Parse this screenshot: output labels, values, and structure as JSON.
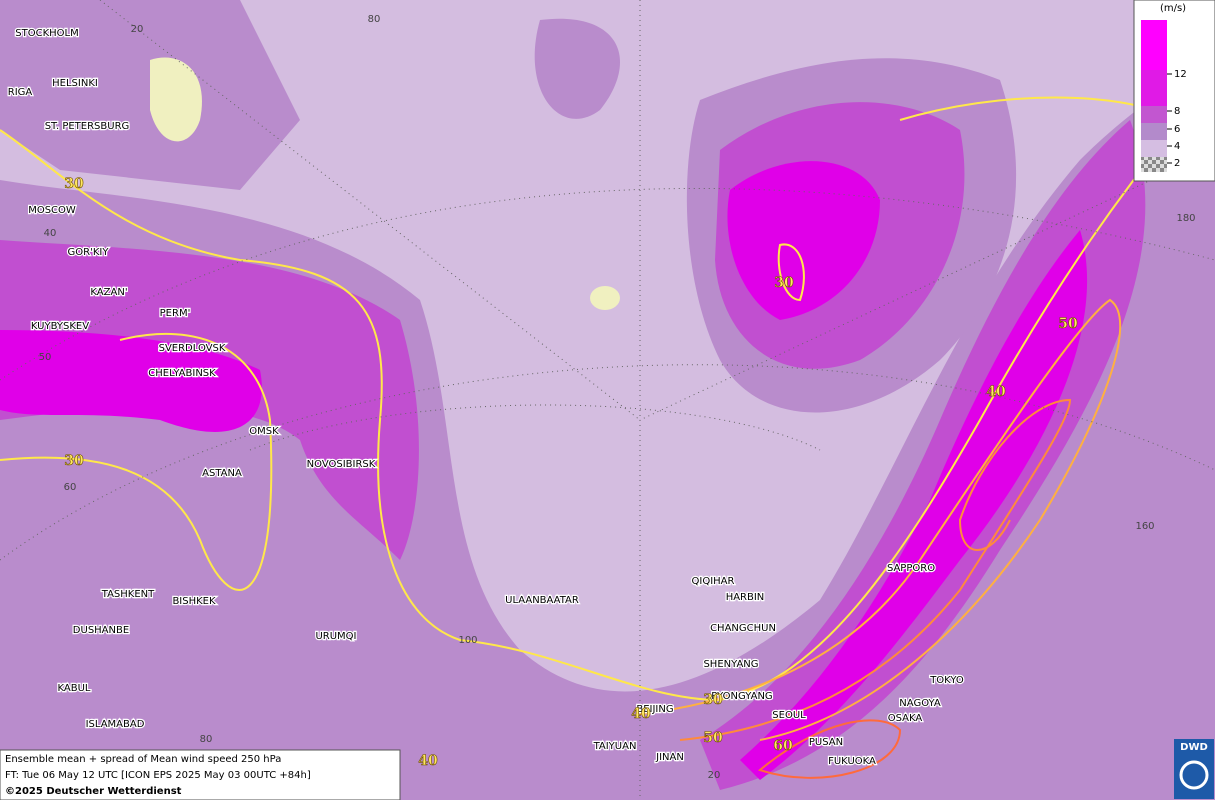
{
  "legend": {
    "unit": "(m/s)",
    "ticks": [
      2,
      4,
      6,
      8,
      12
    ]
  },
  "cities": [
    "STOCKHOLM",
    "HELSINKI",
    "RIGA",
    "ST. PETERSBURG",
    "MOSCOW",
    "GOR'KIY",
    "KAZAN'",
    "PERM'",
    "KUYBYSKEV",
    "SVERDLOVSK",
    "CHELYABINSK",
    "OMSK",
    "NOVOSIBIRSK",
    "ASTANA",
    "TASHKENT",
    "BISHKEK",
    "DUSHANBE",
    "URUMQI",
    "ULAANBAATAR",
    "QIQIHAR",
    "HARBIN",
    "CHANGCHUN",
    "SHENYANG",
    "PYONGYANG",
    "BEIJING",
    "SEOUL",
    "SAPPORO",
    "TOKYO",
    "NAGOYA",
    "OSAKA",
    "PUSAN",
    "FUKUOKA",
    "TAIYUAN",
    "JINAN",
    "KABUL",
    "ISLAMABAD"
  ],
  "contour_labels": [
    30,
    30,
    50,
    40,
    30,
    40,
    30,
    50,
    60,
    40
  ],
  "grid_labels": [
    80,
    20,
    40,
    50,
    60,
    80,
    100,
    20,
    160,
    180
  ],
  "footer": {
    "line1": "Ensemble mean + spread of Mean wind speed 250 hPa",
    "line2": "FT: Tue 06 May 12 UTC [ICON EPS 2025 May 03 00UTC +84h]",
    "copyright": "©2025 Deutscher Wetterdienst"
  },
  "logo": "DWD"
}
